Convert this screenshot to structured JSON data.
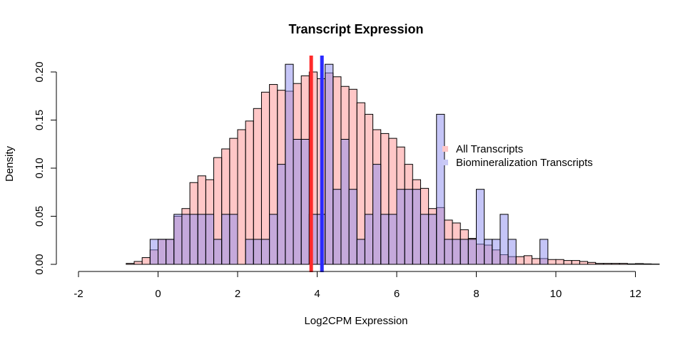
{
  "chart_data": {
    "type": "histogram",
    "title": "Transcript Expression",
    "xlabel": "Log2CPM Expression",
    "ylabel": "Density",
    "xlim": [
      -2,
      12.5
    ],
    "ylim": [
      0,
      0.215
    ],
    "xticks": [
      -2,
      0,
      2,
      4,
      6,
      8,
      10,
      12
    ],
    "xtick_labels": [
      "-2",
      "0",
      "2",
      "4",
      "6",
      "8",
      "10",
      "12"
    ],
    "yticks": [
      0,
      0.05,
      0.1,
      0.15,
      0.2
    ],
    "ytick_labels": [
      "0.00",
      "0.05",
      "0.10",
      "0.15",
      "0.20"
    ],
    "grid": false,
    "bin_width": 0.2,
    "series": [
      {
        "name": "All Transcripts",
        "color": "#ffc7c7",
        "bin_start": -0.8,
        "values": [
          0.001,
          0.003,
          0.007,
          0.015,
          0.026,
          0.026,
          0.05,
          0.058,
          0.085,
          0.092,
          0.088,
          0.111,
          0.12,
          0.131,
          0.14,
          0.149,
          0.162,
          0.179,
          0.187,
          0.181,
          0.18,
          0.188,
          0.196,
          0.2,
          0.193,
          0.199,
          0.195,
          0.185,
          0.182,
          0.168,
          0.156,
          0.14,
          0.136,
          0.131,
          0.122,
          0.104,
          0.088,
          0.079,
          0.058,
          0.059,
          0.046,
          0.043,
          0.036,
          0.027,
          0.021,
          0.02,
          0.015,
          0.01,
          0.008,
          0.008,
          0.009,
          0.006,
          0.006,
          0.005,
          0.005,
          0.004,
          0.004,
          0.003,
          0.002,
          0.001,
          0.001,
          0.001,
          0.001,
          0.0005,
          0.0008,
          0.0005,
          0.0003
        ]
      },
      {
        "name": "Biomineralization Transcripts",
        "color": "#c9c9f5",
        "bin_start": -0.2,
        "values": [
          0.026,
          0.026,
          0.026,
          0.052,
          0.052,
          0.052,
          0.052,
          0.052,
          0.026,
          0.052,
          0.052,
          0.0,
          0.026,
          0.026,
          0.026,
          0.052,
          0.104,
          0.208,
          0.13,
          0.13,
          0.052,
          0.052,
          0.208,
          0.078,
          0.13,
          0.078,
          0.026,
          0.052,
          0.104,
          0.052,
          0.052,
          0.078,
          0.078,
          0.078,
          0.052,
          0.052,
          0.156,
          0.026,
          0.026,
          0.026,
          0.026,
          0.078,
          0.026,
          0.026,
          0.052,
          0.026,
          0.0,
          0.0,
          0.0,
          0.026
        ]
      }
    ],
    "vlines": [
      {
        "name": "All Transcripts mean",
        "x": 3.85,
        "color": "#ff2a2a"
      },
      {
        "name": "Biomineralization mean",
        "x": 4.12,
        "color": "#2a2aff"
      }
    ],
    "legend": {
      "position": "right",
      "items": [
        {
          "label": "All Transcripts",
          "color": "#ffc7c7"
        },
        {
          "label": "Biomineralization Transcripts",
          "color": "#c9c9f5"
        }
      ]
    }
  }
}
